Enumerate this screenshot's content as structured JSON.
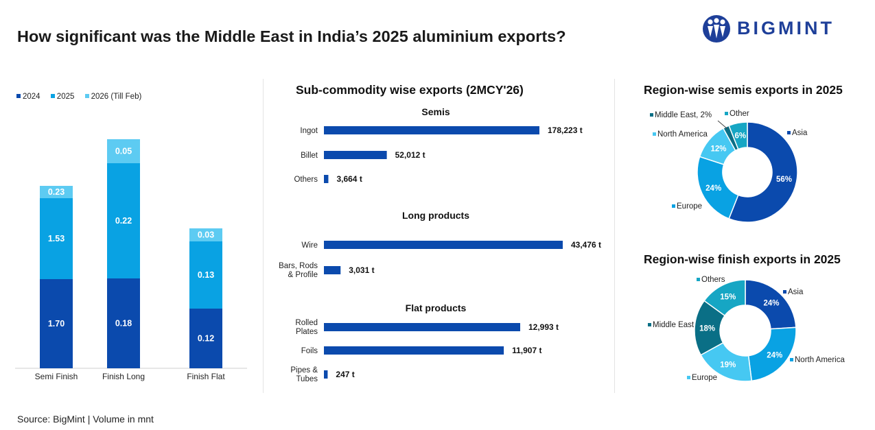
{
  "header": {
    "title": "How significant was the Middle East in India’s 2025 aluminium exports?",
    "brand": "BIGMINT"
  },
  "footer": {
    "source": "Source: BigMint | Volume in mnt"
  },
  "colors": {
    "dark": "#0b4aad",
    "mid": "#09a2e3",
    "light": "#5dcbf2",
    "bar": "#0b4aad"
  },
  "chart_data": [
    {
      "type": "bar",
      "stacked": true,
      "title": "",
      "categories": [
        "Semi Finish",
        "Finish Long",
        "Finish Flat"
      ],
      "series": [
        {
          "name": "2024",
          "values": [
            1.7,
            0.18,
            0.12
          ],
          "labels": [
            "1.70",
            "0.18",
            "0.12"
          ]
        },
        {
          "name": "2025",
          "values": [
            1.53,
            0.22,
            0.13
          ],
          "labels": [
            "1.53",
            "0.22",
            "0.13"
          ]
        },
        {
          "name": "2026 (Till Feb)",
          "values": [
            0.23,
            0.05,
            0.03
          ],
          "labels": [
            "0.23",
            "0.05",
            "0.03"
          ]
        }
      ],
      "ylabel": "Volume in mnt",
      "grid": false,
      "legend": "top-left"
    },
    {
      "type": "bar",
      "orientation": "horizontal",
      "title": "Sub-commodity wise exports (2MCY'26)",
      "groups": [
        {
          "name": "Semis",
          "items": [
            {
              "label": "Ingot",
              "value": 178223,
              "value_label": "178,223",
              "unit": "t"
            },
            {
              "label": "Billet",
              "value": 52012,
              "value_label": "52,012",
              "unit": "t"
            },
            {
              "label": "Others",
              "value": 3664,
              "value_label": "3,664",
              "unit": "t"
            }
          ]
        },
        {
          "name": "Long products",
          "items": [
            {
              "label": "Wire",
              "value": 43476,
              "value_label": "43,476",
              "unit": "t"
            },
            {
              "label": "Bars, Rods & Profile",
              "value": 3031,
              "value_label": "3,031",
              "unit": "t"
            }
          ]
        },
        {
          "name": "Flat products",
          "items": [
            {
              "label": "Rolled Plates",
              "value": 12993,
              "value_label": "12,993",
              "unit": "t"
            },
            {
              "label": "Foils",
              "value": 11907,
              "value_label": "11,907",
              "unit": "t"
            },
            {
              "label": "Pipes & Tubes",
              "value": 247,
              "value_label": "247",
              "unit": "t"
            }
          ]
        }
      ]
    },
    {
      "type": "pie",
      "donut": true,
      "title": "Region-wise semis exports in 2025",
      "slices": [
        {
          "name": "Asia",
          "value": 56,
          "label": "56%",
          "legend": "Asia",
          "color": "#0b4aad"
        },
        {
          "name": "Europe",
          "value": 24,
          "label": "24%",
          "legend": "Europe",
          "color": "#09a2e3"
        },
        {
          "name": "North America",
          "value": 12,
          "label": "12%",
          "legend": "North America",
          "color": "#46c8f2"
        },
        {
          "name": "Middle East",
          "value": 2,
          "label": "",
          "legend": "Middle East, 2%",
          "color": "#0a6f86"
        },
        {
          "name": "Other",
          "value": 6,
          "label": "6%",
          "legend": "Other",
          "color": "#16a6c4"
        }
      ]
    },
    {
      "type": "pie",
      "donut": true,
      "title": "Region-wise finish exports in 2025",
      "slices": [
        {
          "name": "Asia",
          "value": 24,
          "label": "24%",
          "legend": "Asia",
          "color": "#0b4aad"
        },
        {
          "name": "North America",
          "value": 24,
          "label": "24%",
          "legend": "North America",
          "color": "#09a2e3"
        },
        {
          "name": "Europe",
          "value": 19,
          "label": "19%",
          "legend": "Europe",
          "color": "#46c8f2"
        },
        {
          "name": "Middle East",
          "value": 18,
          "label": "18%",
          "legend": "Middle East",
          "color": "#0a6f86"
        },
        {
          "name": "Others",
          "value": 15,
          "label": "15%",
          "legend": "Others",
          "color": "#16a6c4"
        }
      ]
    }
  ]
}
